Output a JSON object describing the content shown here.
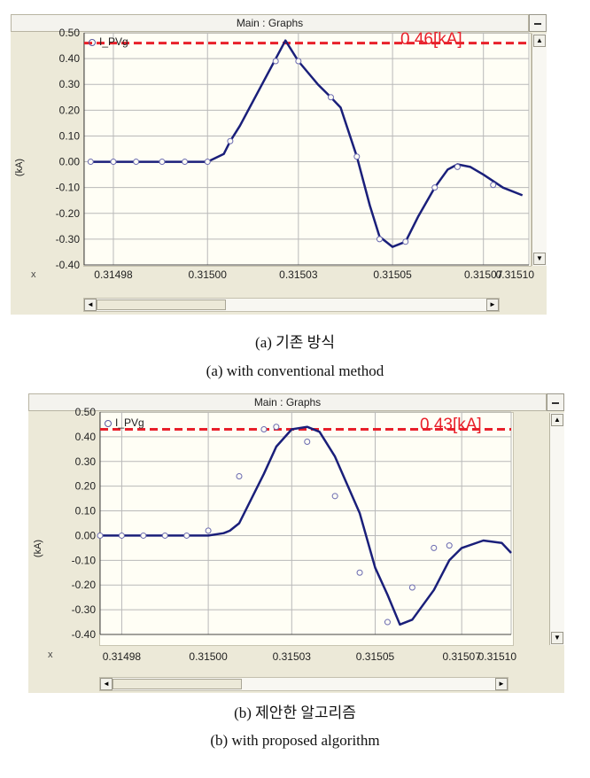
{
  "panels": [
    {
      "window_title": "Main : Graphs",
      "legend_label": "I_PVg",
      "peak_label": "0.46[kA]",
      "ylabel": "(kA)",
      "x_axis_marker": "x",
      "caption_ko": "(a)  기존  방식",
      "caption_en": "(a)  with  conventional  method"
    },
    {
      "window_title": "Main : Graphs",
      "legend_label": "I_PVg",
      "peak_label": "0.43[kA]",
      "ylabel": "(kA)",
      "x_axis_marker": "x",
      "caption_ko": "(b)  제안한  알고리즘",
      "caption_en": "(b)  with  proposed  algorithm"
    }
  ],
  "chart_data": [
    {
      "type": "line",
      "series": [
        {
          "name": "I_PVg",
          "color": "#1a1f7a",
          "x": [
            0.314965,
            0.314972,
            0.314979,
            0.314987,
            0.314994,
            0.315001,
            0.315006,
            0.315008,
            0.315011,
            0.315025,
            0.315029,
            0.315033,
            0.315035,
            0.315039,
            0.315042,
            0.315047,
            0.315051,
            0.315054,
            0.315058,
            0.315062,
            0.315066,
            0.315071,
            0.315075,
            0.315078,
            0.315082,
            0.315086,
            0.315092,
            0.315098
          ],
          "y": [
            0.0,
            0.0,
            0.0,
            0.0,
            0.0,
            0.0,
            0.03,
            0.08,
            0.14,
            0.47,
            0.39,
            0.33,
            0.3,
            0.25,
            0.21,
            0.02,
            -0.17,
            -0.29,
            -0.33,
            -0.31,
            -0.21,
            -0.1,
            -0.03,
            -0.01,
            -0.02,
            -0.05,
            -0.1,
            -0.13
          ]
        }
      ],
      "markers": {
        "x": [
          0.314965,
          0.314972,
          0.314979,
          0.314987,
          0.314994,
          0.315001,
          0.315008,
          0.315022,
          0.315029,
          0.315039,
          0.315047,
          0.315054,
          0.315062,
          0.315071,
          0.315078,
          0.315089
        ],
        "y": [
          0.0,
          0.0,
          0.0,
          0.0,
          0.0,
          0.0,
          0.08,
          0.39,
          0.39,
          0.25,
          0.02,
          -0.3,
          -0.31,
          -0.1,
          -0.02,
          -0.09
        ]
      },
      "peak_value": 0.46,
      "xlim": [
        0.314963,
        0.3151
      ],
      "ylim": [
        -0.4,
        0.5
      ],
      "x_tick_labels": [
        "0.31498",
        "0.31500",
        "0.31503",
        "0.31505",
        "0.31507",
        "0.31510"
      ],
      "x_tick_values": [
        0.314972,
        0.315001,
        0.315029,
        0.315058,
        0.315086,
        0.3151
      ],
      "y_tick_labels": [
        "0.50",
        "0.40",
        "0.30",
        "0.20",
        "0.10",
        "0.00",
        "-0.10",
        "-0.20",
        "-0.30",
        "-0.40"
      ],
      "y_tick_values": [
        0.5,
        0.4,
        0.3,
        0.2,
        0.1,
        0.0,
        -0.1,
        -0.2,
        -0.3,
        -0.4
      ],
      "grid": true
    },
    {
      "type": "line",
      "series": [
        {
          "name": "I_PVg",
          "color": "#1a1f7a",
          "x": [
            0.314968,
            0.314975,
            0.314982,
            0.314989,
            0.314996,
            0.315003,
            0.315008,
            0.31501,
            0.315013,
            0.315021,
            0.315025,
            0.31503,
            0.315035,
            0.315039,
            0.315044,
            0.315052,
            0.315057,
            0.315061,
            0.315065,
            0.315069,
            0.315076,
            0.315081,
            0.315085,
            0.315092,
            0.315098,
            0.315101
          ],
          "y": [
            0.0,
            0.0,
            0.0,
            0.0,
            0.0,
            0.0,
            0.01,
            0.02,
            0.05,
            0.25,
            0.36,
            0.43,
            0.44,
            0.42,
            0.32,
            0.09,
            -0.13,
            -0.24,
            -0.36,
            -0.34,
            -0.22,
            -0.1,
            -0.05,
            -0.02,
            -0.03,
            -0.07
          ],
          "y_tail": []
        }
      ],
      "markers": {
        "x": [
          0.314968,
          0.314975,
          0.314982,
          0.314989,
          0.314996,
          0.315003,
          0.315013,
          0.315021,
          0.315025,
          0.315035,
          0.315044,
          0.315052,
          0.315061,
          0.315069,
          0.315076,
          0.315081
        ],
        "y": [
          0.0,
          0.0,
          0.0,
          0.0,
          0.0,
          0.02,
          0.24,
          0.43,
          0.44,
          0.38,
          0.16,
          -0.15,
          -0.35,
          -0.21,
          -0.05,
          -0.04
        ]
      },
      "peak_value": 0.43,
      "xlim": [
        0.314968,
        0.315101
      ],
      "ylim": [
        -0.4,
        0.5
      ],
      "x_tick_labels": [
        "0.31498",
        "0.31500",
        "0.31503",
        "0.31505",
        "0.31507",
        "0.31510"
      ],
      "x_tick_values": [
        0.314975,
        0.315003,
        0.31503,
        0.315057,
        0.315085,
        0.315101
      ],
      "y_tick_labels": [
        "0.50",
        "0.40",
        "0.30",
        "0.20",
        "0.10",
        "0.00",
        "-0.10",
        "-0.20",
        "-0.30",
        "-0.40"
      ],
      "y_tick_values": [
        0.5,
        0.4,
        0.3,
        0.2,
        0.1,
        0.0,
        -0.1,
        -0.2,
        -0.3,
        -0.4
      ],
      "grid": true
    }
  ],
  "colors": {
    "curve": "#1a1f7a",
    "peak_line": "#e8202a",
    "grid": "#b9b9b9",
    "plot_bg": "#fffef5",
    "frame_bg": "#ece9d8"
  },
  "icons": {
    "minimize": "minimize-icon",
    "scroll_left": "arrow-left-icon",
    "scroll_right": "arrow-right-icon",
    "scroll_up": "arrow-up-icon",
    "scroll_down": "arrow-down-icon"
  }
}
